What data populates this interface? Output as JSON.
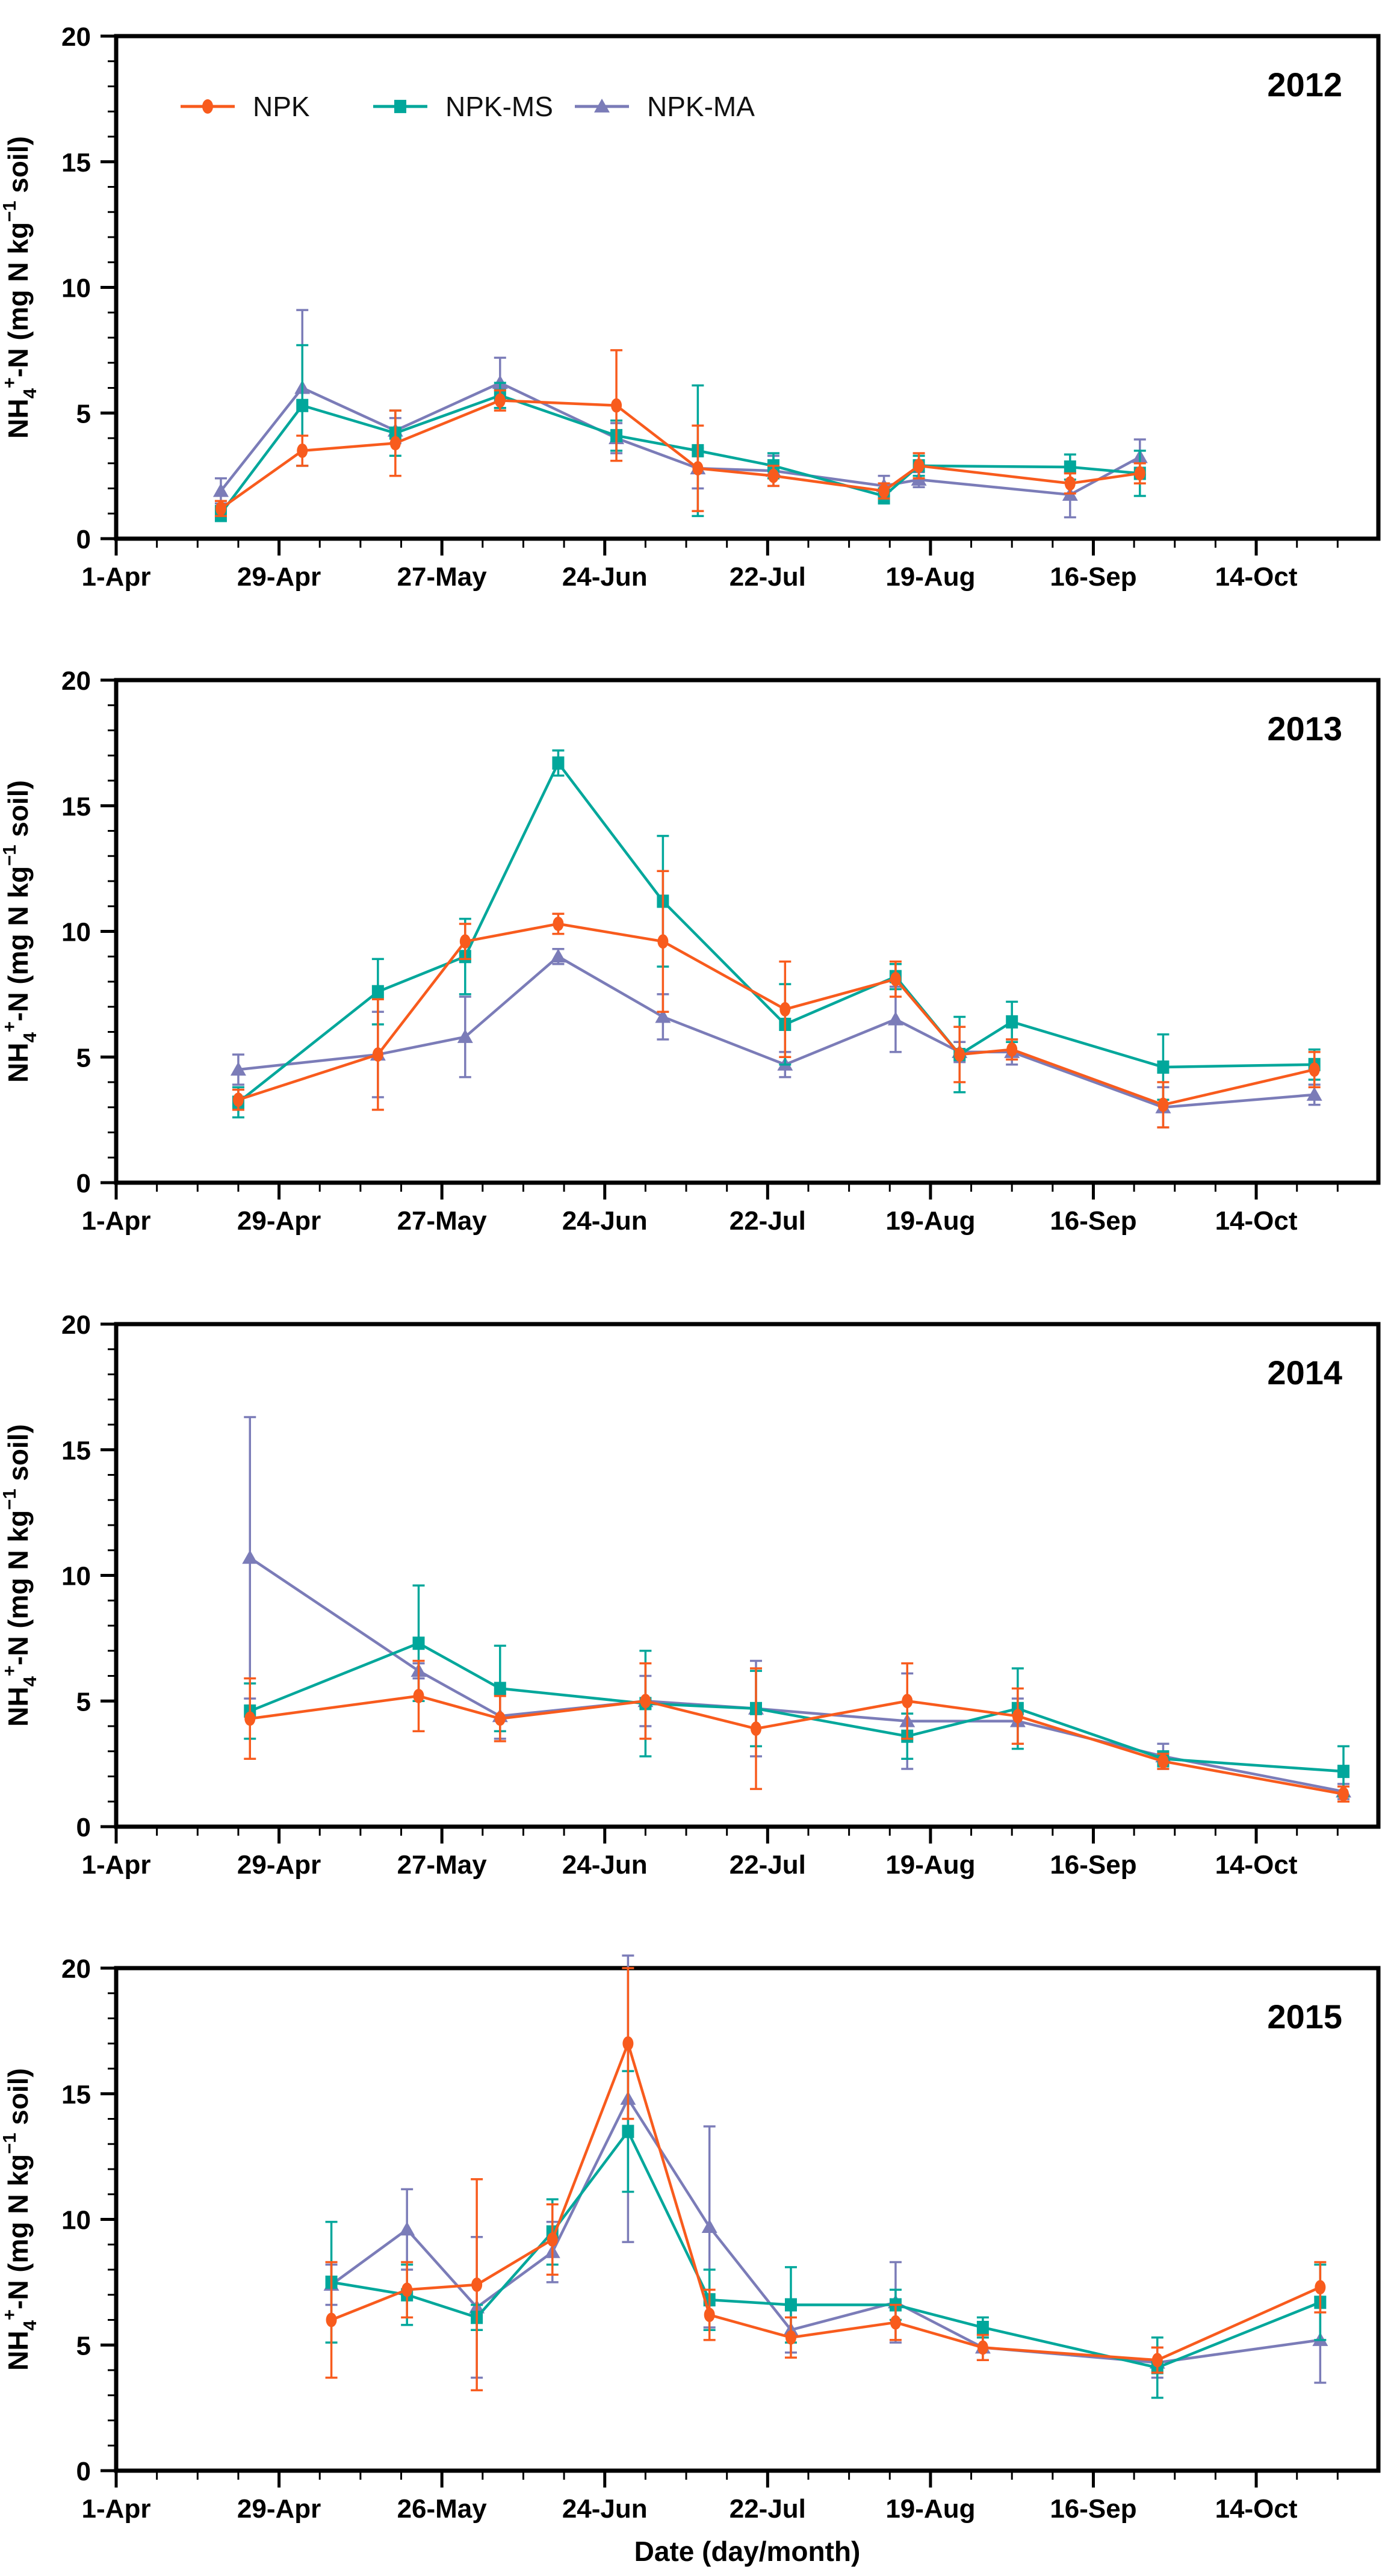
{
  "figure": {
    "xlabel": "Date (day/month)",
    "ylabel_parts": [
      {
        "text": "NH",
        "style": "normal"
      },
      {
        "text": "4",
        "style": "sub"
      },
      {
        "text": "+",
        "style": "sup"
      },
      {
        "text": "-N (mg N kg",
        "style": "normal"
      },
      {
        "text": "−1",
        "style": "sup"
      },
      {
        "text": " soil)",
        "style": "normal"
      }
    ],
    "background": "#ffffff",
    "axis_color": "#000000"
  },
  "series_styles": {
    "NPK": {
      "color": "#F85B1D",
      "marker": "circle"
    },
    "NPK-MS": {
      "color": "#00A79B",
      "marker": "square"
    },
    "NPK-MA": {
      "color": "#7B7CB8",
      "marker": "triangle"
    }
  },
  "legend": {
    "items": [
      {
        "label": "NPK",
        "series": "NPK"
      },
      {
        "label": "NPK-MS",
        "series": "NPK-MS"
      },
      {
        "label": "NPK-MA",
        "series": "NPK-MA"
      }
    ]
  },
  "chart_data": [
    {
      "type": "line",
      "title": "2012",
      "show_legend": true,
      "show_xlabel": false,
      "ylim": [
        0,
        20
      ],
      "yticks": [
        0,
        5,
        10,
        15,
        20
      ],
      "xtick_labels": [
        "1-Apr",
        "29-Apr",
        "27-May",
        "24-Jun",
        "22-Jul",
        "19-Aug",
        "16-Sep",
        "14-Oct"
      ],
      "dates": [
        "19-Apr",
        "3-May",
        "19-May",
        "6-Jun",
        "26-Jun",
        "10-Jul",
        "23-Jul",
        "11-Aug",
        "17-Aug",
        "12-Sep",
        "24-Sep"
      ],
      "series": [
        {
          "name": "NPK",
          "values": [
            1.2,
            3.5,
            3.8,
            5.5,
            5.3,
            2.8,
            2.5,
            1.9,
            2.9,
            2.2,
            2.6
          ],
          "err": [
            0.3,
            0.6,
            1.3,
            0.4,
            2.2,
            1.7,
            0.4,
            0.3,
            0.5,
            0.4,
            0.4
          ]
        },
        {
          "name": "NPK-MS",
          "values": [
            1.0,
            5.3,
            4.2,
            5.7,
            4.1,
            3.5,
            2.9,
            1.7,
            2.9,
            2.85,
            2.6
          ],
          "err": [
            0.3,
            2.4,
            0.9,
            0.5,
            0.6,
            2.6,
            0.5,
            0.3,
            0.4,
            0.5,
            0.9
          ]
        },
        {
          "name": "NPK-MA",
          "values": [
            1.9,
            6.0,
            4.3,
            6.2,
            4.0,
            2.8,
            2.7,
            2.1,
            2.35,
            1.75,
            3.25
          ],
          "err": [
            0.5,
            3.1,
            0.5,
            1.0,
            0.6,
            0.8,
            0.6,
            0.4,
            0.3,
            0.9,
            0.7
          ]
        }
      ]
    },
    {
      "type": "line",
      "title": "2013",
      "show_legend": false,
      "show_xlabel": false,
      "ylim": [
        0,
        20
      ],
      "yticks": [
        0,
        5,
        10,
        15,
        20
      ],
      "xtick_labels": [
        "1-Apr",
        "29-Apr",
        "27-May",
        "24-Jun",
        "22-Jul",
        "19-Aug",
        "16-Sep",
        "14-Oct"
      ],
      "dates": [
        "22-Apr",
        "16-May",
        "31-May",
        "16-Jun",
        "4-Jul",
        "25-Jul",
        "13-Aug",
        "24-Aug",
        "2-Sep",
        "28-Sep",
        "24-Oct"
      ],
      "series": [
        {
          "name": "NPK",
          "values": [
            3.3,
            5.1,
            9.6,
            10.3,
            9.6,
            6.9,
            8.1,
            5.1,
            5.3,
            3.1,
            4.5
          ],
          "err": [
            0.4,
            2.2,
            0.7,
            0.4,
            2.8,
            1.9,
            0.7,
            1.1,
            0.4,
            0.9,
            0.7
          ]
        },
        {
          "name": "NPK-MS",
          "values": [
            3.2,
            7.6,
            9.0,
            16.7,
            11.2,
            6.3,
            8.2,
            5.1,
            6.4,
            4.6,
            4.7
          ],
          "err": [
            0.6,
            1.3,
            1.5,
            0.5,
            2.6,
            1.6,
            0.5,
            1.5,
            0.8,
            1.3,
            0.6
          ]
        },
        {
          "name": "NPK-MA",
          "values": [
            4.5,
            5.1,
            5.8,
            9.0,
            6.6,
            4.7,
            6.5,
            5.2,
            5.2,
            3.0,
            3.5
          ],
          "err": [
            0.6,
            1.7,
            1.6,
            0.3,
            0.9,
            0.5,
            1.3,
            0.4,
            0.5,
            0.8,
            0.4
          ]
        }
      ]
    },
    {
      "type": "line",
      "title": "2014",
      "show_legend": false,
      "show_xlabel": false,
      "ylim": [
        0,
        20
      ],
      "yticks": [
        0,
        5,
        10,
        15,
        20
      ],
      "xtick_labels": [
        "1-Apr",
        "29-Apr",
        "27-May",
        "24-Jun",
        "22-Jul",
        "19-Aug",
        "16-Sep",
        "14-Oct"
      ],
      "dates": [
        "24-Apr",
        "23-May",
        "6-Jun",
        "1-Jul",
        "20-Jul",
        "15-Aug",
        "3-Sep",
        "28-Sep",
        "29-Oct"
      ],
      "series": [
        {
          "name": "NPK",
          "values": [
            4.3,
            5.2,
            4.3,
            5.0,
            3.9,
            5.0,
            4.4,
            2.6,
            1.3
          ],
          "err": [
            1.6,
            1.4,
            0.9,
            1.5,
            2.4,
            1.5,
            1.1,
            0.3,
            0.3
          ]
        },
        {
          "name": "NPK-MS",
          "values": [
            4.6,
            7.3,
            5.5,
            4.9,
            4.7,
            3.6,
            4.7,
            2.7,
            2.2
          ],
          "err": [
            1.1,
            2.3,
            1.7,
            2.1,
            1.5,
            0.9,
            1.6,
            0.3,
            1.0
          ]
        },
        {
          "name": "NPK-MA",
          "values": [
            10.7,
            6.2,
            4.4,
            5.0,
            4.7,
            4.2,
            4.2,
            2.8,
            1.4
          ],
          "err": [
            5.6,
            0.3,
            0.9,
            1.0,
            1.9,
            1.9,
            0.9,
            0.5,
            0.3
          ]
        }
      ]
    },
    {
      "type": "line",
      "title": "2015",
      "show_legend": false,
      "show_xlabel": true,
      "ylim": [
        0,
        20
      ],
      "yticks": [
        0,
        5,
        10,
        15,
        20
      ],
      "xtick_labels": [
        "1-Apr",
        "29-Apr",
        "26-May",
        "24-Jun",
        "22-Jul",
        "19-Aug",
        "16-Sep",
        "14-Oct"
      ],
      "dates": [
        "8-May",
        "21-May",
        "2-Jun",
        "15-Jun",
        "28-Jun",
        "12-Jul",
        "26-Jul",
        "13-Aug",
        "28-Aug",
        "27-Sep",
        "25-Oct"
      ],
      "series": [
        {
          "name": "NPK",
          "values": [
            6.0,
            7.2,
            7.4,
            9.2,
            17.0,
            6.2,
            5.3,
            5.9,
            4.9,
            4.4,
            7.3
          ],
          "err": [
            2.3,
            1.1,
            4.2,
            1.4,
            3.0,
            1.0,
            0.8,
            0.7,
            0.5,
            0.5,
            1.0
          ]
        },
        {
          "name": "NPK-MS",
          "values": [
            7.5,
            7.0,
            6.1,
            9.5,
            13.5,
            6.8,
            6.6,
            6.6,
            5.7,
            4.1,
            6.7
          ],
          "err": [
            2.4,
            1.2,
            0.5,
            1.3,
            2.4,
            1.2,
            1.5,
            0.6,
            0.4,
            1.2,
            1.5
          ]
        },
        {
          "name": "NPK-MA",
          "values": [
            7.4,
            9.6,
            6.5,
            8.7,
            14.8,
            9.7,
            5.6,
            6.7,
            4.9,
            4.3,
            5.2
          ],
          "err": [
            0.8,
            1.6,
            2.8,
            1.2,
            5.7,
            4.0,
            0.9,
            1.6,
            0.5,
            0.6,
            1.7
          ]
        }
      ]
    }
  ]
}
